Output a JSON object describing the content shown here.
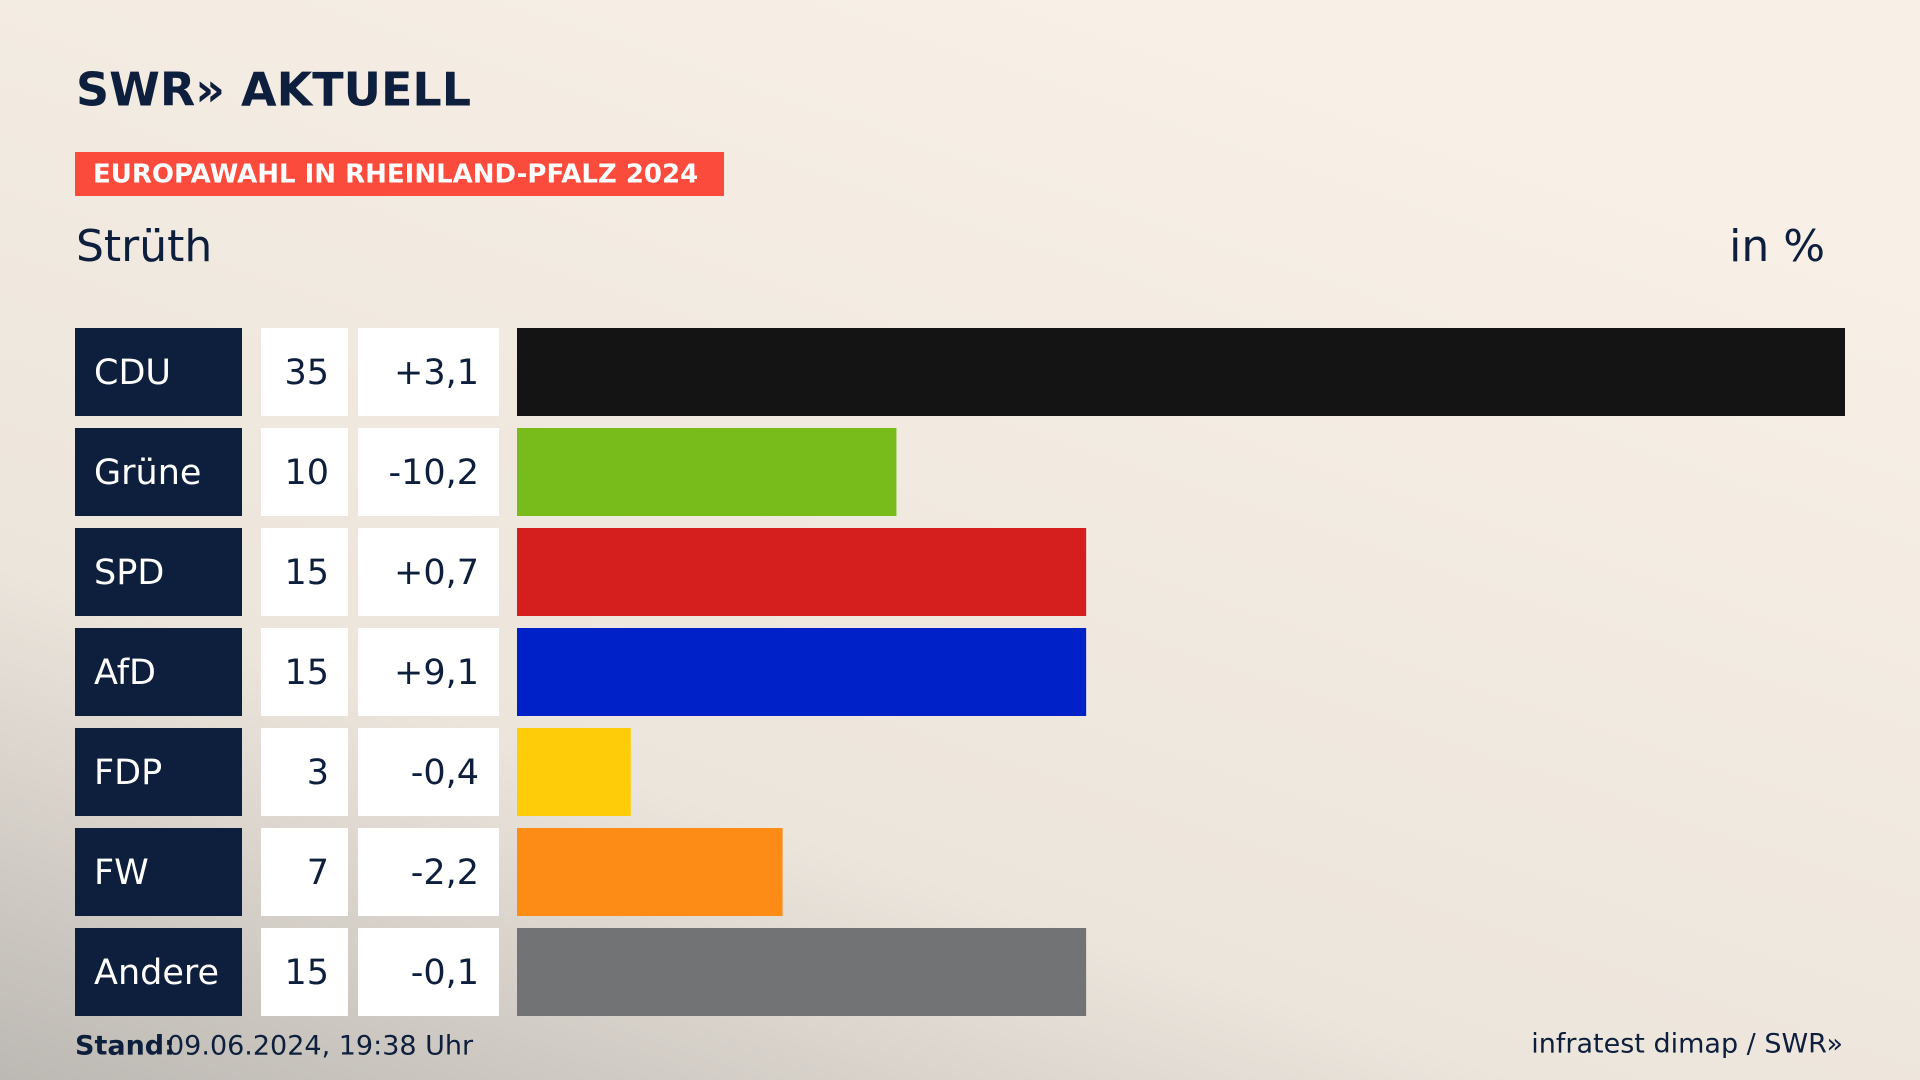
{
  "header": {
    "brand": "SWR» AKTUELL"
  },
  "chart_data": {
    "type": "bar",
    "title": "EUROPAWAHL IN RHEINLAND-PFALZ 2024",
    "subtitle": "Strüth",
    "unit": "in %",
    "categories": [
      "CDU",
      "Grüne",
      "SPD",
      "AfD",
      "FDP",
      "FW",
      "Andere"
    ],
    "values": [
      35,
      10,
      15,
      15,
      3,
      7,
      15
    ],
    "colors": [
      "#141414",
      "#78bc1b",
      "#d51f1e",
      "#0020c8",
      "#ffcc0a",
      "#fd8c17",
      "#727374"
    ],
    "change": {
      "values": [
        3.1,
        -10.2,
        0.7,
        9.1,
        -0.4,
        -2.2,
        -0.1
      ],
      "value_labels": [
        "+3,1",
        "-10,2",
        "+0,7",
        "+9,1",
        "-0,4",
        "-2,2",
        "-0,1"
      ]
    },
    "xlim": [
      0,
      35
    ]
  },
  "footer": {
    "stand_label": "Stand:",
    "stand": "09.06.2024, 19:38 Uhr",
    "source": "infratest dimap / SWR»"
  }
}
